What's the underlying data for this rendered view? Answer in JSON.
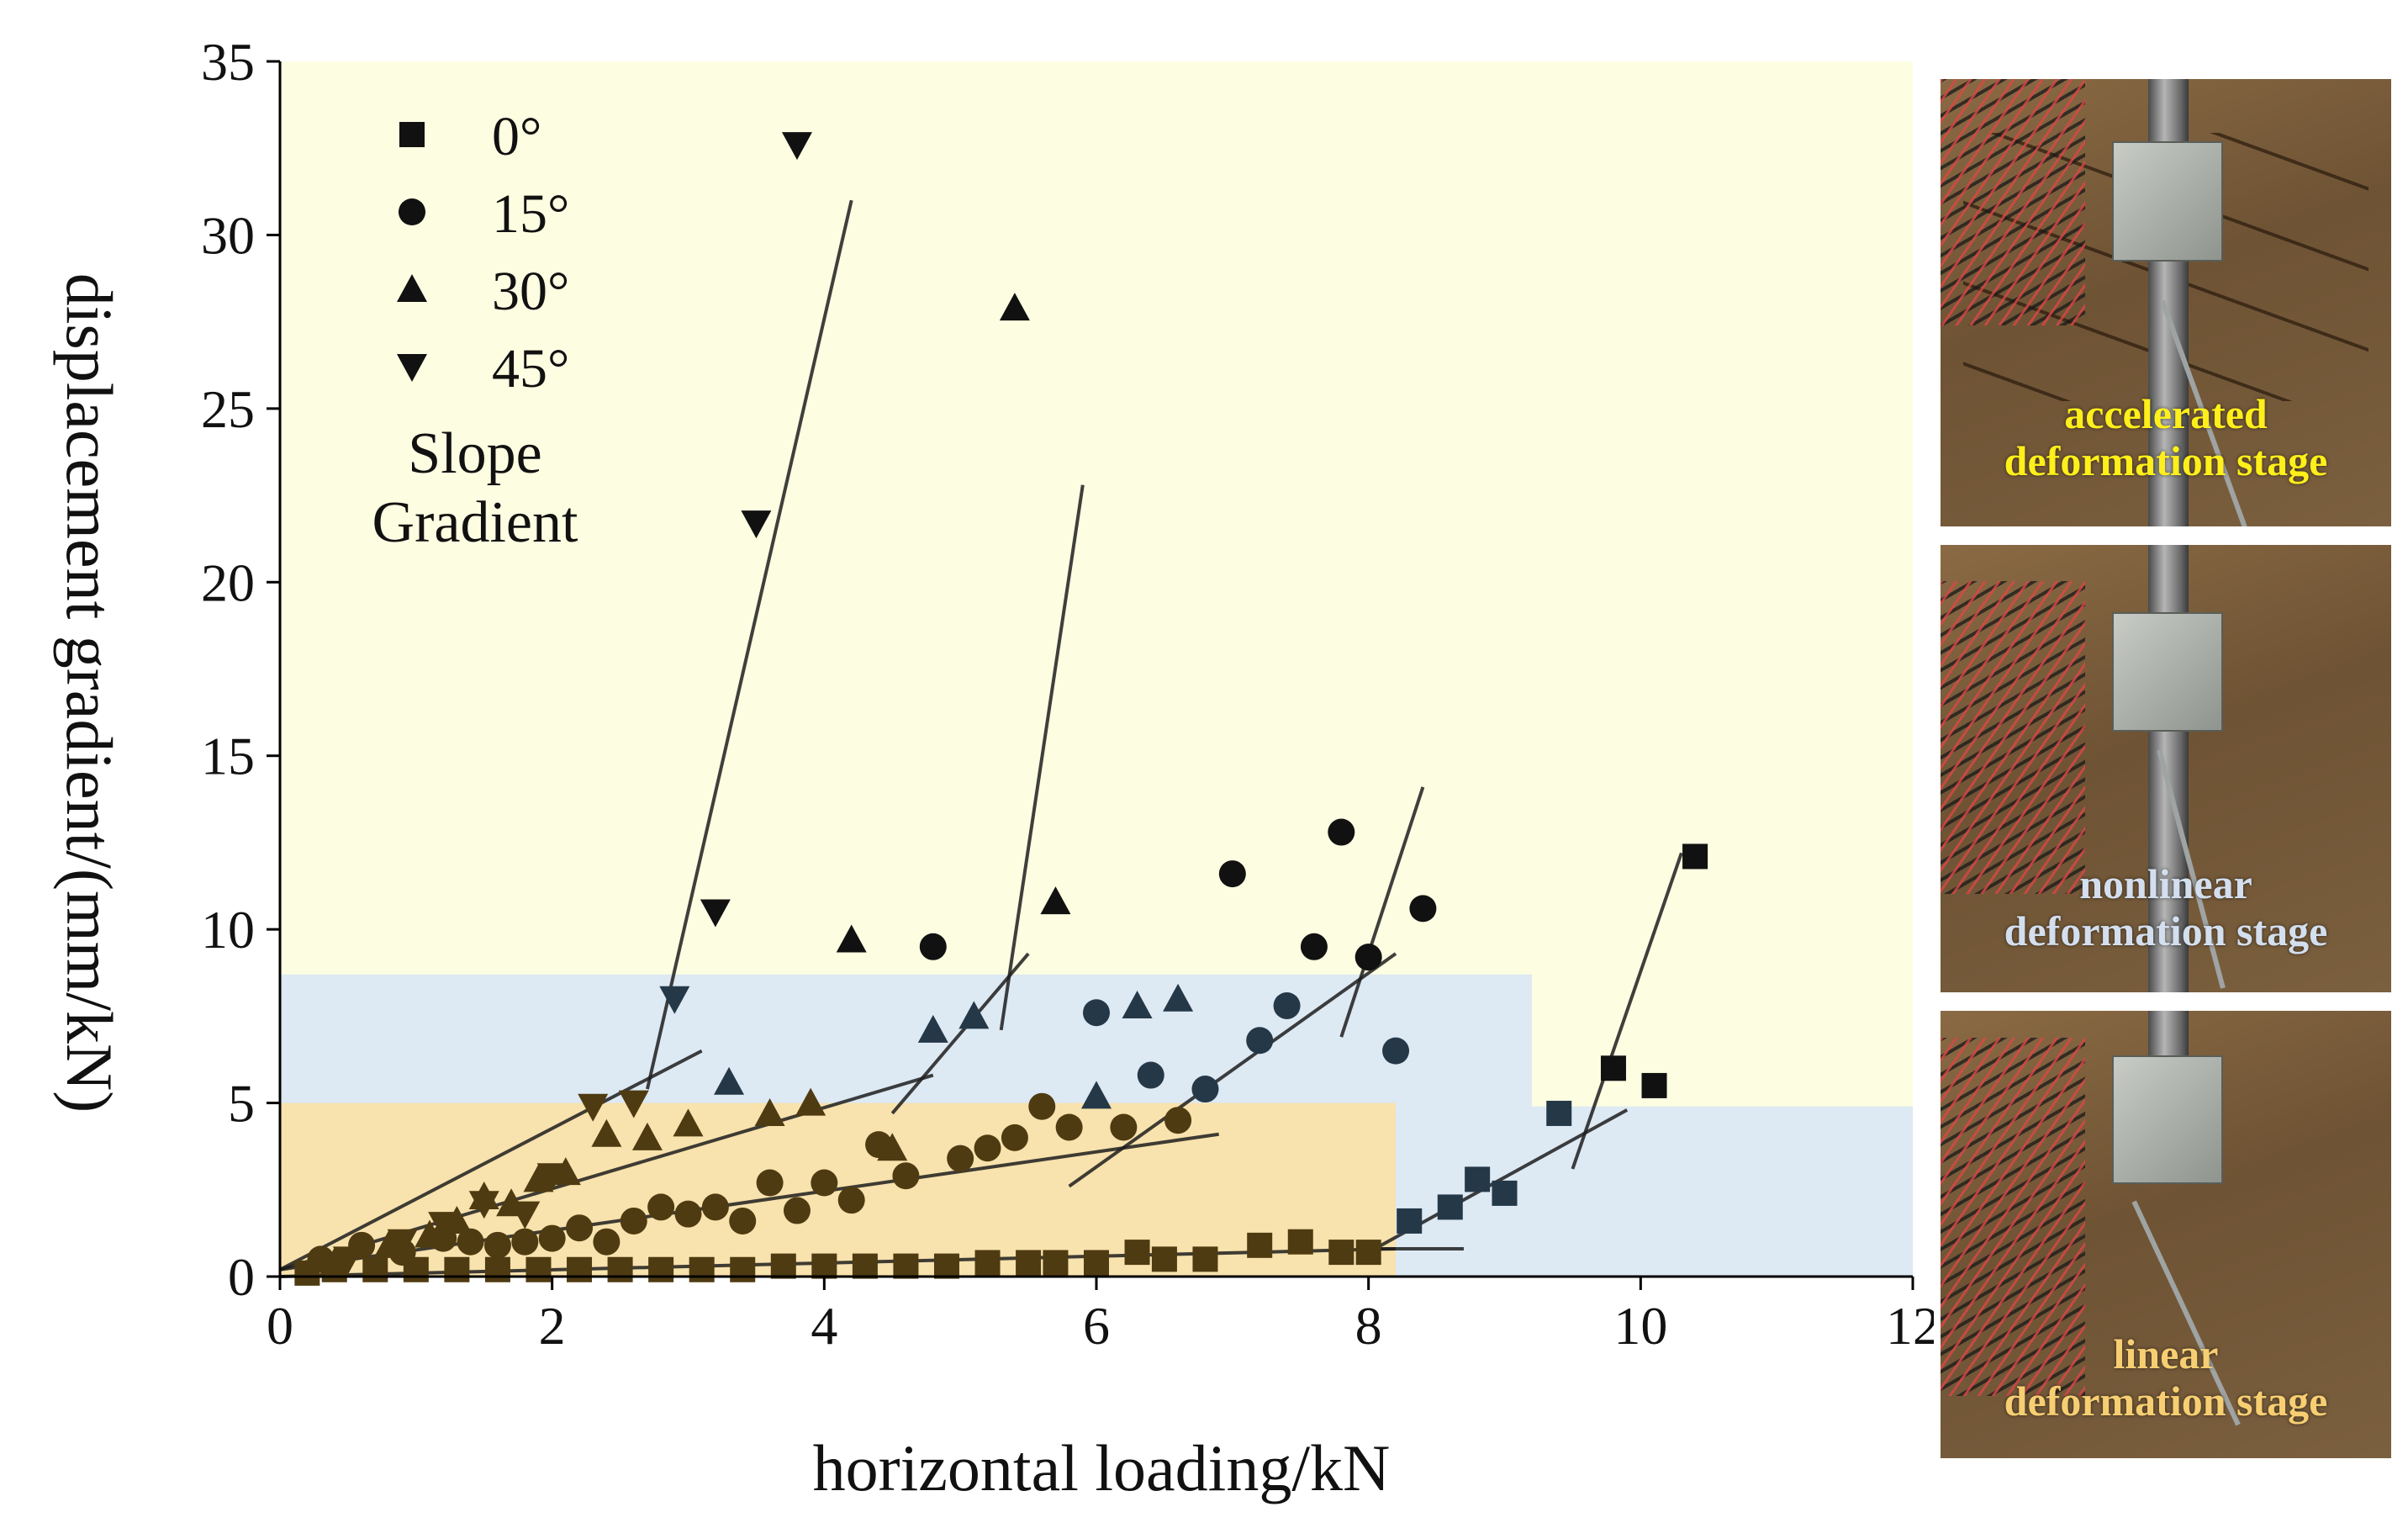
{
  "chart_data": {
    "type": "scatter",
    "xlabel": "horizontal loading/kN",
    "ylabel": "displacement gradient/(mm/kN)",
    "xlim": [
      0,
      12
    ],
    "ylim": [
      0,
      35
    ],
    "xticks": [
      "0",
      "2",
      "4",
      "6",
      "8",
      "10",
      "12"
    ],
    "yticks": [
      "0",
      "5",
      "10",
      "15",
      "20",
      "25",
      "30",
      "35"
    ],
    "grid": false,
    "legend_position": "top-left",
    "legend_title": [
      "Slope",
      "Gradient"
    ],
    "zones": [
      {
        "name": "accelerated",
        "color": "#fdfde2"
      },
      {
        "name": "nonlinear",
        "color": "#dde9f3"
      },
      {
        "name": "linear",
        "color": "#f8e2ad"
      }
    ],
    "series": [
      {
        "name": "0°",
        "marker": "square",
        "x": [
          0.2,
          0.4,
          0.7,
          1.0,
          1.3,
          1.6,
          1.9,
          2.2,
          2.5,
          2.8,
          3.1,
          3.4,
          3.7,
          4.0,
          4.3,
          4.6,
          4.9,
          5.2,
          5.5,
          5.7,
          6.0,
          6.3,
          6.5,
          6.8,
          7.2,
          7.5,
          7.8,
          8.0,
          8.3,
          8.6,
          8.8,
          9.0,
          9.4,
          9.8,
          10.1,
          10.4
        ],
        "y": [
          0.1,
          0.2,
          0.2,
          0.2,
          0.2,
          0.2,
          0.2,
          0.2,
          0.2,
          0.2,
          0.2,
          0.2,
          0.3,
          0.3,
          0.3,
          0.3,
          0.3,
          0.4,
          0.4,
          0.4,
          0.4,
          0.7,
          0.5,
          0.5,
          0.9,
          1.0,
          0.7,
          0.7,
          1.6,
          2.0,
          2.8,
          2.4,
          4.7,
          6.0,
          5.5,
          12.1
        ]
      },
      {
        "name": "15°",
        "marker": "circle",
        "x": [
          0.3,
          0.6,
          0.9,
          1.2,
          1.4,
          1.6,
          1.8,
          2.0,
          2.2,
          2.4,
          2.6,
          2.8,
          3.0,
          3.2,
          3.4,
          3.6,
          3.8,
          4.0,
          4.2,
          4.4,
          4.6,
          4.8,
          5.0,
          5.2,
          5.4,
          5.6,
          5.8,
          6.0,
          6.2,
          6.4,
          6.6,
          6.8,
          7.0,
          7.2,
          7.4,
          7.6,
          7.8,
          8.0,
          8.2,
          8.4
        ],
        "y": [
          0.5,
          0.9,
          0.7,
          1.1,
          1.0,
          0.9,
          1.0,
          1.1,
          1.4,
          1.0,
          1.6,
          2.0,
          1.8,
          2.0,
          1.6,
          2.7,
          1.9,
          2.7,
          2.2,
          3.8,
          2.9,
          9.5,
          3.4,
          3.7,
          4.0,
          4.9,
          4.3,
          7.6,
          4.3,
          5.8,
          4.5,
          5.4,
          11.6,
          6.8,
          7.8,
          9.5,
          12.8,
          9.2,
          6.5,
          10.6
        ]
      },
      {
        "name": "30°",
        "marker": "triangle-up",
        "x": [
          0.4,
          0.8,
          1.1,
          1.3,
          1.5,
          1.7,
          1.9,
          2.1,
          2.4,
          2.7,
          3.0,
          3.3,
          3.6,
          3.9,
          4.2,
          4.5,
          4.8,
          5.1,
          5.4,
          5.7,
          6.0,
          6.3,
          6.6
        ],
        "y": [
          0.4,
          0.9,
          1.2,
          1.6,
          2.3,
          2.1,
          2.8,
          3.0,
          4.1,
          4.0,
          4.4,
          5.6,
          4.7,
          5.0,
          9.7,
          3.7,
          7.1,
          7.5,
          27.9,
          10.8,
          5.2,
          7.8,
          8.0
        ]
      },
      {
        "name": "45°",
        "marker": "triangle-down",
        "x": [
          0.5,
          0.9,
          1.2,
          1.5,
          1.8,
          2.0,
          2.3,
          2.6,
          2.9,
          3.2,
          3.5,
          3.8
        ],
        "y": [
          0.5,
          1.0,
          1.5,
          2.1,
          1.8,
          2.9,
          4.9,
          5.0,
          8.0,
          10.5,
          21.7,
          32.6
        ]
      }
    ],
    "fit_lines": [
      {
        "series": "0°",
        "x": [
          0.0,
          8.2
        ],
        "y": [
          0.0,
          0.8
        ]
      },
      {
        "series": "0°",
        "x": [
          8.0,
          9.9
        ],
        "y": [
          0.7,
          4.8
        ]
      },
      {
        "series": "0°",
        "x": [
          9.5,
          10.3
        ],
        "y": [
          3.1,
          12.2
        ]
      },
      {
        "series": "0°",
        "x": [
          8.0,
          8.7
        ],
        "y": [
          0.8,
          0.8
        ]
      },
      {
        "series": "15°",
        "x": [
          0.0,
          6.9
        ],
        "y": [
          0.2,
          4.1
        ]
      },
      {
        "series": "15°",
        "x": [
          5.8,
          8.2
        ],
        "y": [
          2.6,
          9.3
        ]
      },
      {
        "series": "15°",
        "x": [
          7.8,
          8.4
        ],
        "y": [
          6.9,
          14.1
        ]
      },
      {
        "series": "30°",
        "x": [
          0.0,
          4.8
        ],
        "y": [
          0.2,
          5.8
        ]
      },
      {
        "series": "30°",
        "x": [
          4.5,
          5.5
        ],
        "y": [
          4.7,
          9.3
        ]
      },
      {
        "series": "30°",
        "x": [
          5.3,
          5.9
        ],
        "y": [
          7.1,
          22.8
        ]
      },
      {
        "series": "45°",
        "x": [
          0.0,
          3.1
        ],
        "y": [
          0.2,
          6.5
        ]
      },
      {
        "series": "45°",
        "x": [
          2.7,
          4.2
        ],
        "y": [
          5.4,
          31.0
        ]
      }
    ]
  },
  "photos": [
    {
      "label_line1": "accelerated",
      "label_line2": "deformation stage",
      "label_color": "#ffef1a"
    },
    {
      "label_line1": "nonlinear",
      "label_line2": "deformation stage",
      "label_color": "#d3dfee"
    },
    {
      "label_line1": "linear",
      "label_line2": "deformation stage",
      "label_color": "#f7cf72"
    }
  ]
}
